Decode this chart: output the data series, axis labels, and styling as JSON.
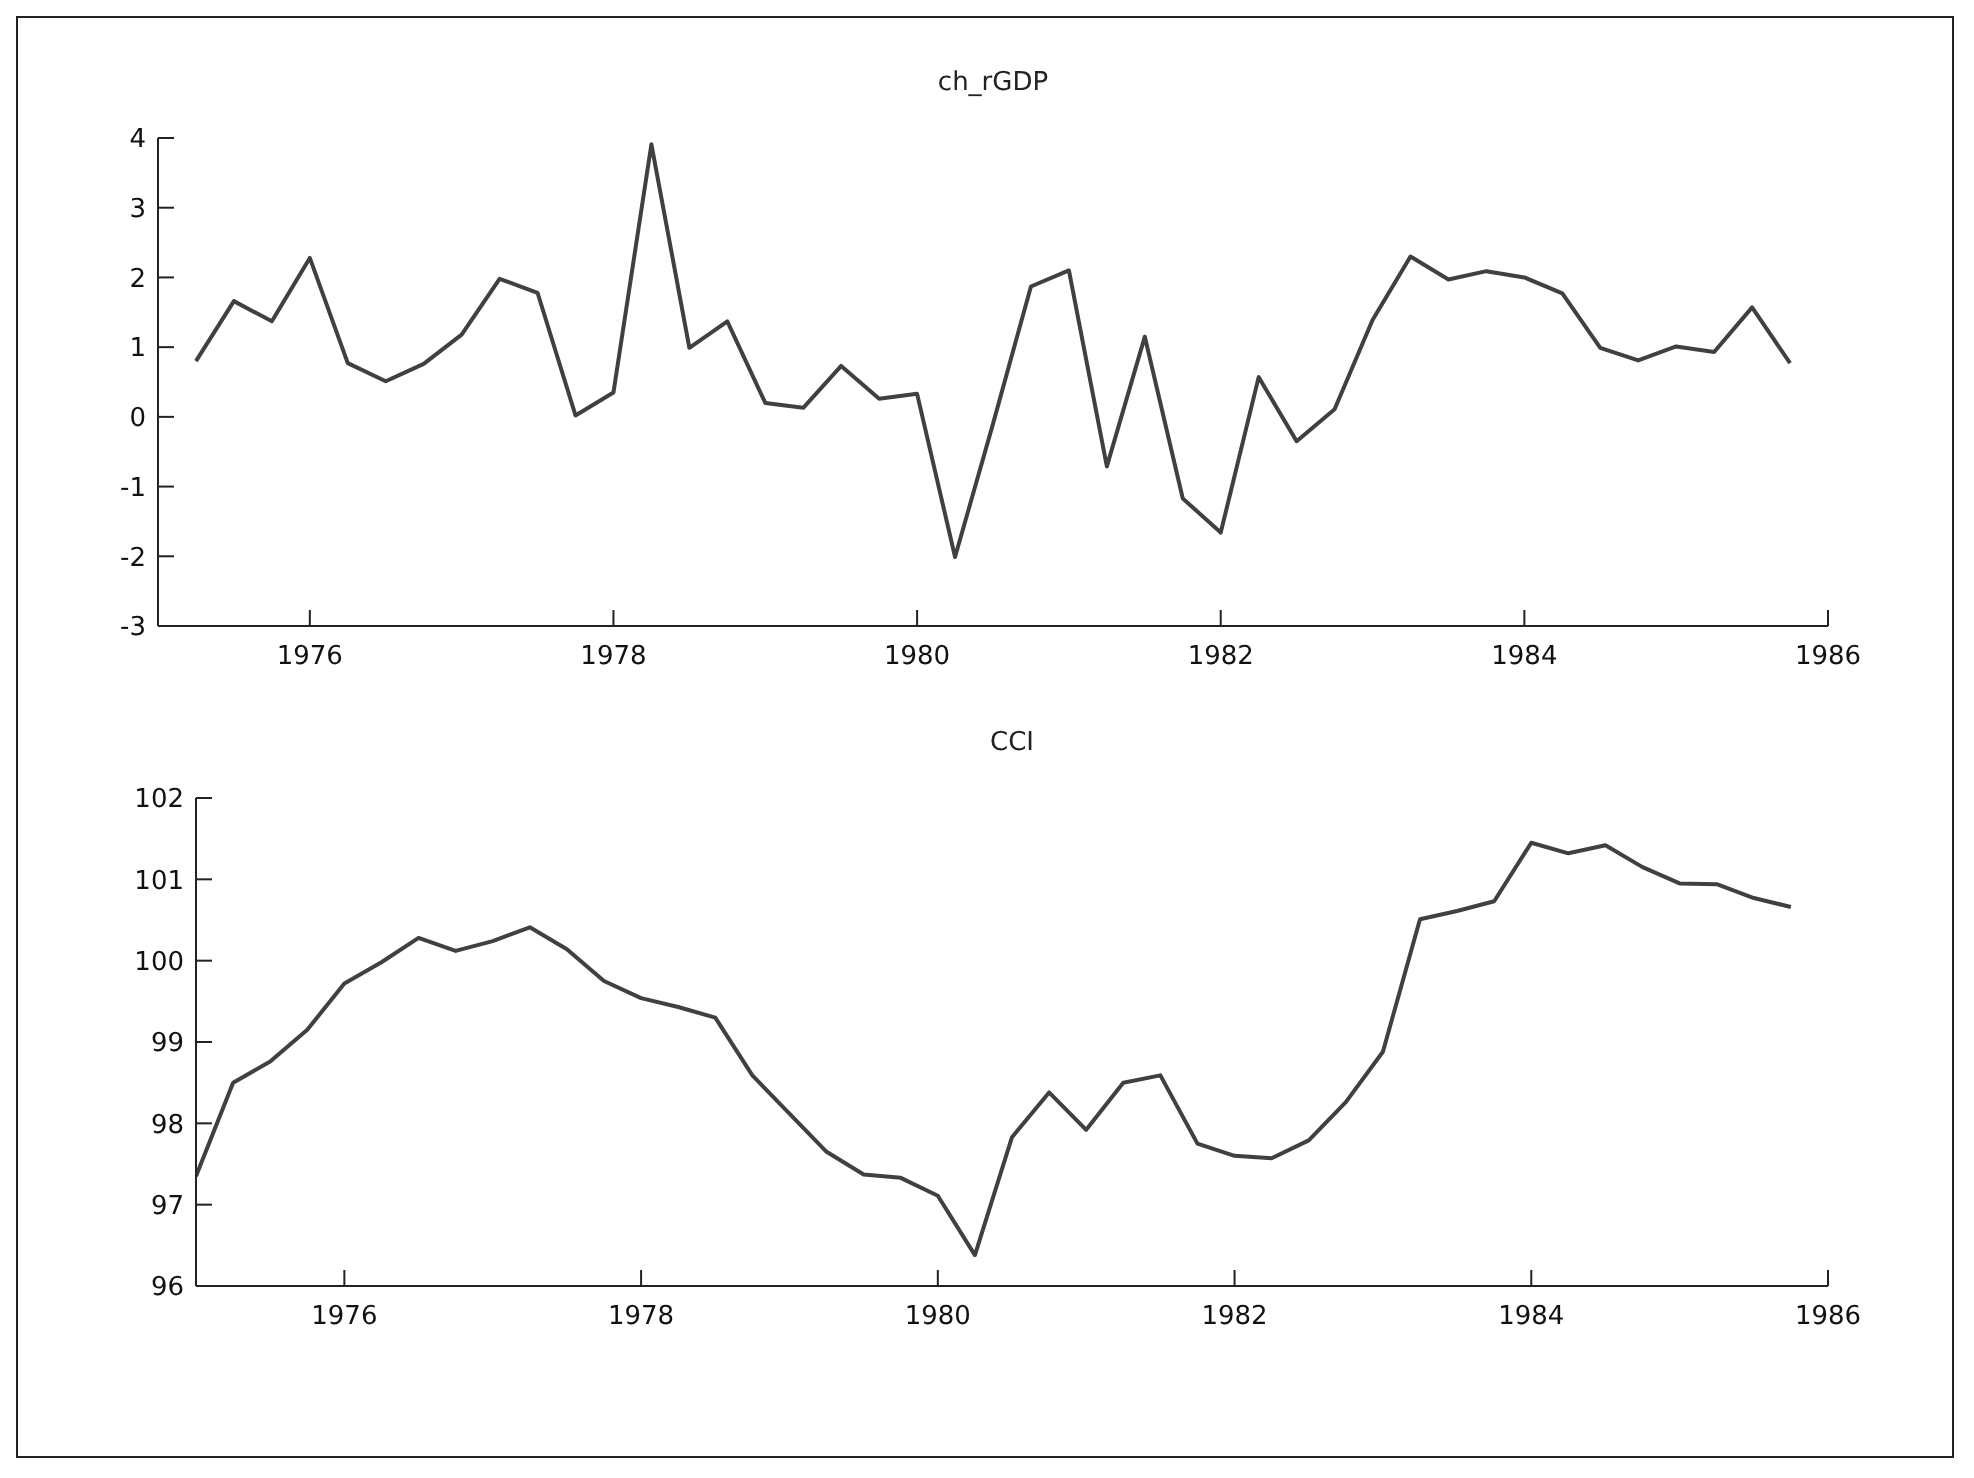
{
  "chart_data": [
    {
      "type": "line",
      "title": "ch_rGDP",
      "x": [
        1975.25,
        1975.5,
        1975.75,
        1976,
        1976.25,
        1976.5,
        1976.75,
        1977,
        1977.25,
        1977.5,
        1977.75,
        1978,
        1978.25,
        1978.5,
        1978.75,
        1979,
        1979.25,
        1979.5,
        1979.75,
        1980,
        1980.25,
        1980.5,
        1980.75,
        1981,
        1981.25,
        1981.5,
        1981.75,
        1982,
        1982.25,
        1982.5,
        1982.75,
        1983,
        1983.25,
        1983.5,
        1983.75,
        1984,
        1984.25,
        1984.5,
        1984.75,
        1985,
        1985.25,
        1985.5,
        1985.75
      ],
      "series": [
        {
          "color": "#404040",
          "values": [
            0.8,
            1.66,
            1.37,
            2.28,
            0.77,
            0.51,
            0.76,
            1.18,
            1.98,
            1.78,
            0.02,
            0.35,
            3.91,
            0.99,
            1.37,
            0.2,
            0.13,
            0.73,
            0.26,
            0.33,
            -2.01,
            -0.1,
            1.87,
            2.1,
            -0.71,
            1.15,
            -1.17,
            -1.66,
            0.57,
            -0.35,
            0.11,
            1.39,
            2.3,
            1.97,
            2.09,
            2.0,
            1.77,
            0.99,
            0.81,
            1.01,
            0.93,
            1.57,
            0.77
          ]
        }
      ],
      "xlim": [
        1975,
        1986
      ],
      "xticks": [
        1976,
        1978,
        1980,
        1982,
        1984,
        1986
      ],
      "ylim": [
        -3,
        4
      ],
      "yticks": [
        -3,
        -2,
        -1,
        0,
        1,
        2,
        3,
        4
      ],
      "grid": false,
      "legend": false,
      "marker": "none",
      "line_style": "solid"
    },
    {
      "type": "line",
      "title": "CCI",
      "x": [
        1975,
        1975.25,
        1975.5,
        1975.75,
        1976,
        1976.25,
        1976.5,
        1976.75,
        1977,
        1977.25,
        1977.5,
        1977.75,
        1978,
        1978.25,
        1978.5,
        1978.75,
        1979,
        1979.25,
        1979.5,
        1979.75,
        1980,
        1980.25,
        1980.5,
        1980.75,
        1981,
        1981.25,
        1981.5,
        1981.75,
        1982,
        1982.25,
        1982.5,
        1982.75,
        1983,
        1983.25,
        1983.5,
        1983.75,
        1984,
        1984.25,
        1984.5,
        1984.75,
        1985,
        1985.25,
        1985.5,
        1985.75
      ],
      "series": [
        {
          "color": "#404040",
          "values": [
            97.35,
            98.5,
            98.76,
            99.15,
            99.72,
            99.98,
            100.28,
            100.12,
            100.24,
            100.41,
            100.14,
            99.75,
            99.54,
            99.43,
            99.3,
            98.59,
            98.12,
            97.65,
            97.37,
            97.33,
            97.11,
            96.38,
            97.83,
            98.38,
            97.92,
            98.5,
            98.59,
            97.75,
            97.6,
            97.57,
            97.79,
            98.26,
            98.88,
            100.51,
            100.61,
            100.73,
            101.45,
            101.32,
            101.42,
            101.15,
            100.95,
            100.94,
            100.77,
            100.66
          ]
        }
      ],
      "xlim": [
        1975,
        1986
      ],
      "xticks": [
        1976,
        1978,
        1980,
        1982,
        1984,
        1986
      ],
      "ylim": [
        96,
        102
      ],
      "yticks": [
        96,
        97,
        98,
        99,
        100,
        101,
        102
      ],
      "grid": false,
      "legend": false,
      "marker": "none",
      "line_style": "solid"
    }
  ]
}
